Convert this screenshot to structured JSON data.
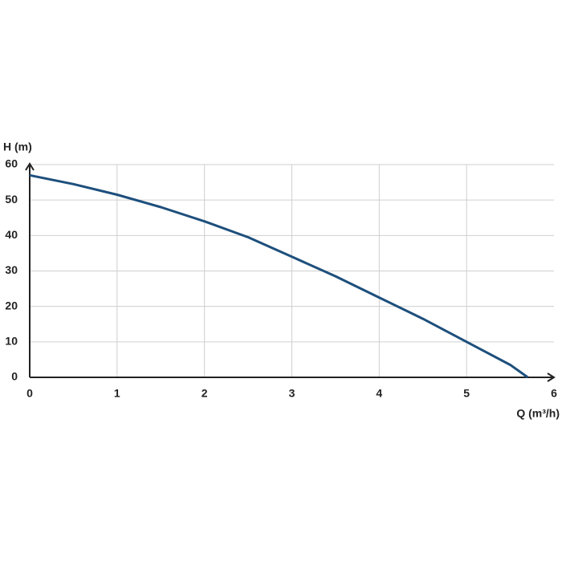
{
  "chart_data": {
    "type": "line",
    "y_label": "H (m)",
    "x_label": "Q (m³/h)",
    "x": [
      0,
      0.5,
      1,
      1.5,
      2,
      2.5,
      3,
      3.5,
      4,
      4.5,
      5,
      5.5,
      5.7
    ],
    "values": [
      57,
      54.5,
      51.5,
      48,
      44,
      39.5,
      34,
      28.5,
      22.5,
      16.5,
      10,
      3.5,
      0
    ],
    "color": "#1d4f7c",
    "xlim": [
      0,
      6
    ],
    "xticks": [
      0,
      1,
      2,
      3,
      4,
      5,
      6
    ],
    "ylim": [
      0,
      60
    ],
    "yticks": [
      0,
      10,
      20,
      30,
      40,
      50,
      60
    ],
    "grid": true
  }
}
